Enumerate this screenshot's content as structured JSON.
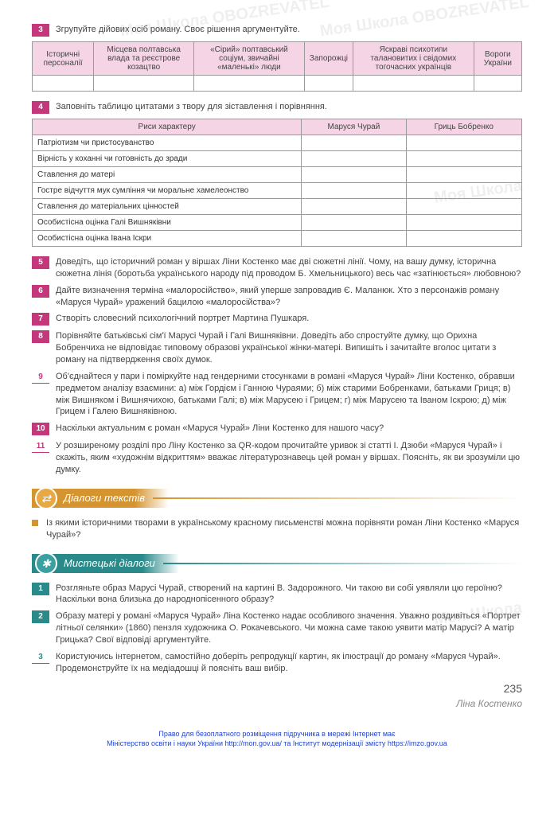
{
  "watermarks": [
    "Моя Школа OBOZREVATEL",
    "Моя Школа OBOZREVATEL",
    "Моя Школа",
    "Моя Школа"
  ],
  "tasks_a": [
    {
      "n": "3",
      "style": "magenta",
      "text": "Згрупуйте дійових осіб роману. Своє рішення аргументуйте."
    }
  ],
  "table1": {
    "headers": [
      "Історичні персоналії",
      "Місцева полтавська влада та реєстрове козацтво",
      "«Сірий» полтавський соціум, звичайні «маленькі» люди",
      "Запорожці",
      "Яскраві психотипи талановитих і свідомих тогочасних українців",
      "Вороги України"
    ]
  },
  "tasks_b": [
    {
      "n": "4",
      "style": "magenta",
      "text": "Заповніть таблицю цитатами з твору для зіставлення і порівняння."
    }
  ],
  "table2": {
    "headers": [
      "Риси характеру",
      "Маруся Чурай",
      "Гриць Бобренко"
    ],
    "rows": [
      "Патріотизм чи пристосуванство",
      "Вірність у коханні чи готовність до зради",
      "Ставлення до матері",
      "Гостре відчуття мук сумління чи моральне хамелеонство",
      "Ставлення до матеріальних цінностей",
      "Особистісна оцінка Галі Вишняківни",
      "Особистісна оцінка Івана Іскри"
    ]
  },
  "tasks_c": [
    {
      "n": "5",
      "style": "magenta",
      "text": "Доведіть, що історичний роман у віршах Ліни Костенко має дві сюжетні лінії. Чому, на вашу думку, історична сюжетна лінія (боротьба українського народу під проводом Б. Хмельницького) весь час «затінюється» любовною?"
    },
    {
      "n": "6",
      "style": "magenta",
      "text": "Дайте визначення терміна «малоросійство», який уперше запровадив Є. Маланюк. Хто з персонажів роману «Маруся Чурай» уражений бацилою «малоросійства»?"
    },
    {
      "n": "7",
      "style": "magenta",
      "text": "Створіть словесний психологічний портрет Мартина Пушкаря."
    },
    {
      "n": "8",
      "style": "magenta",
      "text": "Порівняйте батьківські сім'ї Марусі Чурай і Галі Вишняківни. Доведіть або спростуйте думку, що Орихна Бобренчиха не відповідає типовому образові української жінки-матері. Випишіть і зачитайте вголос цитати з роману на підтвердження своїх думок."
    },
    {
      "n": "9",
      "style": "outline-m",
      "text": "Об'єднайтеся у пари і поміркуйте над гендерними стосунками в романі «Маруся Чурай» Ліни Костенко, обравши предметом аналізу взаємини: а) між Гордієм і Ганною Чураями; б) між старими Бобренками, батьками Гриця; в) між Вишняком і Вишнячихою, батьками Галі; в) між Марусею і Грицем; г) між Марусею та Іваном Іскрою; д) між Грицем і Галею Вишняківною."
    },
    {
      "n": "10",
      "style": "magenta",
      "text": "Наскільки актуальним є роман «Маруся Чурай» Ліни Костенко для нашого часу?"
    },
    {
      "n": "11",
      "style": "outline-m",
      "text": "У розширеному розділі про Ліну Костенко за QR-кодом прочитайте уривок зі статті І. Дзюби «Маруся Чурай» і скажіть, яким «художнім відкриттям» вважає літературознавець цей роман у віршах. Поясніть, як ви зрозуміли цю думку."
    }
  ],
  "section1": {
    "title": "Діалоги текстів"
  },
  "bullet1": "Із якими історичними творами в українському красному письменстві можна порівняти роман Ліни Костенко «Маруся Чурай»?",
  "section2": {
    "title": "Мистецькі діалоги"
  },
  "tasks_d": [
    {
      "n": "1",
      "style": "teal",
      "text": "Розгляньте образ Марусі Чурай, створений на картині В. Задорожного. Чи такою ви собі уявляли цю героїню? Наскільки вона близька до народнопісенного образу?"
    },
    {
      "n": "2",
      "style": "teal",
      "text": "Образу матері у романі «Маруся Чурай» Ліна Костенко надає особливого значення. Уважно роздивіться «Портрет літньої селянки» (1860) пензля художника О. Рокачевського. Чи можна саме такою уявити матір Марусі? А матір Грицька? Свої відповіді аргументуйте."
    },
    {
      "n": "3",
      "style": "outline-t",
      "text": "Користуючись інтернетом, самостійно доберіть репродукції картин, як ілюстрації до роману «Маруся Чурай». Продемонструйте їх на медіадошці й поясніть ваш вибір."
    }
  ],
  "footer_author": "Ліна Костенко",
  "page_num": "235",
  "bottom1": "Право для безоплатного розміщення підручника в мережі Інтернет має",
  "bottom2": "Міністерство освіти і науки України http://mon.gov.ua/ та Інститут модернізації змісту https://imzo.gov.ua"
}
